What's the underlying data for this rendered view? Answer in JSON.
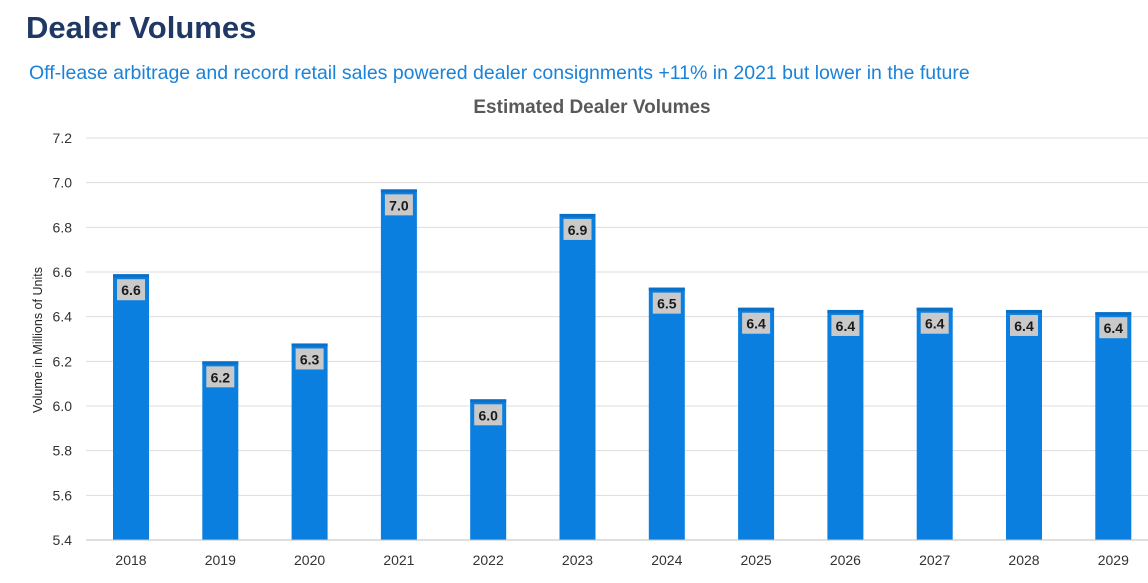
{
  "header": {
    "title": "Dealer Volumes",
    "subtitle": "Off-lease arbitrage and record retail sales powered dealer consignments +11% in 2021 but lower in the future"
  },
  "colors": {
    "bar": "#0b7fe0",
    "label_box": "#c9c9c9",
    "grid": "#dddddd"
  },
  "chart_data": {
    "type": "bar",
    "title": "Estimated Dealer Volumes",
    "xlabel": "",
    "ylabel": "Volume in Millions of Units",
    "categories": [
      "2018",
      "2019",
      "2020",
      "2021",
      "2022",
      "2023",
      "2024",
      "2025",
      "2026",
      "2027",
      "2028",
      "2029"
    ],
    "values": [
      6.59,
      6.2,
      6.28,
      6.97,
      6.03,
      6.86,
      6.53,
      6.44,
      6.43,
      6.44,
      6.43,
      6.42
    ],
    "data_labels": [
      "6.6",
      "6.2",
      "6.3",
      "7.0",
      "6.0",
      "6.9",
      "6.5",
      "6.4",
      "6.4",
      "6.4",
      "6.4",
      "6.4"
    ],
    "ylim": [
      5.4,
      7.2
    ],
    "yticks": [
      "5.4",
      "5.6",
      "5.8",
      "6.0",
      "6.2",
      "6.4",
      "6.6",
      "6.8",
      "7.0",
      "7.2"
    ],
    "grid": true,
    "legend": "none"
  }
}
